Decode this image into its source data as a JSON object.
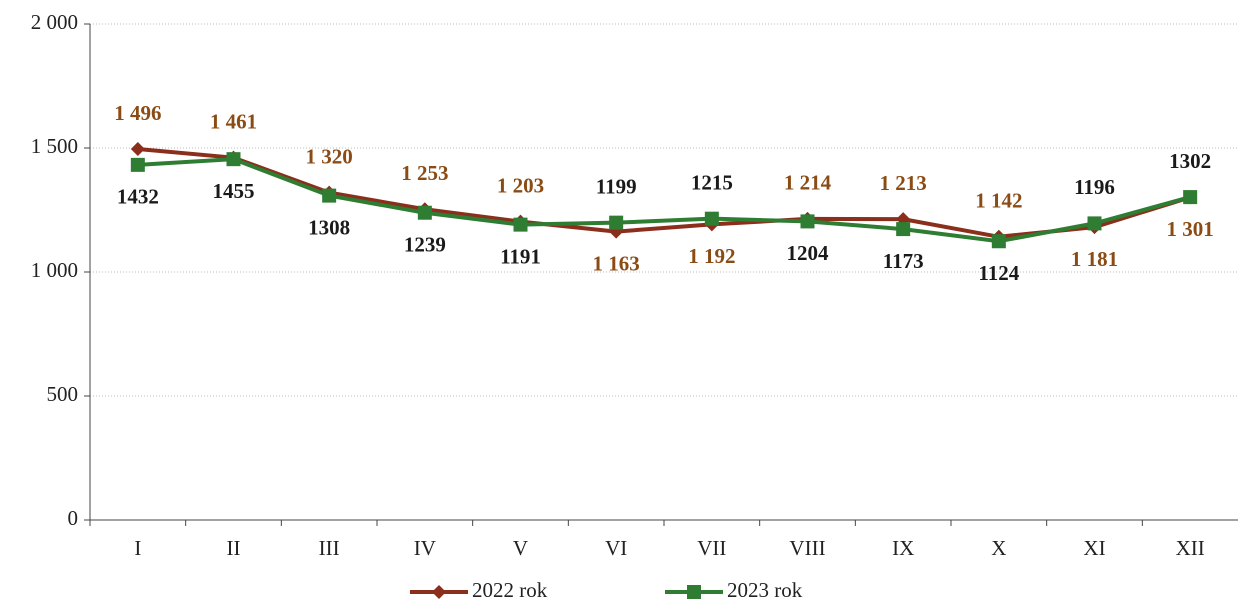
{
  "chart_data": {
    "type": "line",
    "categories": [
      "I",
      "II",
      "III",
      "IV",
      "V",
      "VI",
      "VII",
      "VIII",
      "IX",
      "X",
      "XI",
      "XII"
    ],
    "series": [
      {
        "name": "2022 rok",
        "color": "#8b2e1c",
        "marker": "diamond",
        "values": [
          1496,
          1461,
          1320,
          1253,
          1203,
          1163,
          1192,
          1214,
          1213,
          1142,
          1181,
          1301
        ],
        "value_labels": [
          "1 496",
          "1 461",
          "1 320",
          "1 253",
          "1 203",
          "1 163",
          "1 192",
          "1 214",
          "1 213",
          "1 142",
          "1 181",
          "1 301"
        ]
      },
      {
        "name": "2023 rok",
        "color": "#2e7d32",
        "marker": "square",
        "values": [
          1432,
          1455,
          1308,
          1239,
          1191,
          1199,
          1215,
          1204,
          1173,
          1124,
          1196,
          1302
        ]
      }
    ],
    "ylim": [
      0,
      2000
    ],
    "yticks": [
      0,
      500,
      {
        "value": 1000,
        "label": "1 000"
      },
      {
        "value": 1500,
        "label": "1 500"
      },
      {
        "value": 2000,
        "label": "2 000"
      }
    ],
    "grid": true,
    "legend": "bottom"
  }
}
